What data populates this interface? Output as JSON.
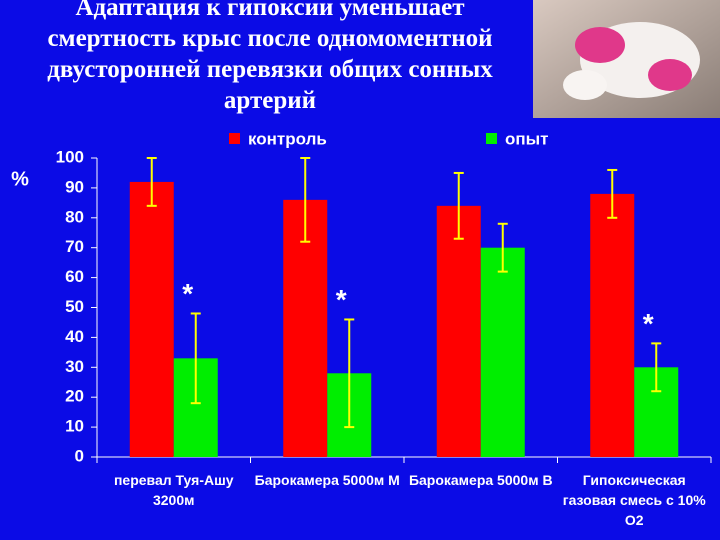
{
  "chart_data": {
    "type": "bar",
    "title": "Адаптация к гипоксии уменьшает смертность крыс после одномоментной двусторонней перевязки общих сонных артерий",
    "y_label": "%",
    "categories": [
      "перевал Туя-Ашу 3200м",
      "Барокамера 5000м М",
      "Барокамера 5000м В",
      "Гипоксическая газовая смесь с 10% О2"
    ],
    "series": [
      {
        "name": "контроль",
        "color": "#ff0000",
        "values": [
          92,
          86,
          84,
          88
        ],
        "errors": [
          8,
          14,
          11,
          8
        ]
      },
      {
        "name": "опыт",
        "color": "#00ee00",
        "values": [
          33,
          28,
          70,
          30
        ],
        "errors": [
          15,
          18,
          8,
          8
        ]
      }
    ],
    "annotations": [
      {
        "text": "*",
        "index": 0
      },
      {
        "text": "*",
        "index": 1
      },
      {
        "text": "*",
        "index": 3
      }
    ],
    "error_color": "#ffff00",
    "ylim": [
      0,
      100
    ],
    "yticks": [
      0,
      10,
      20,
      30,
      40,
      50,
      60,
      70,
      80,
      90,
      100
    ]
  }
}
